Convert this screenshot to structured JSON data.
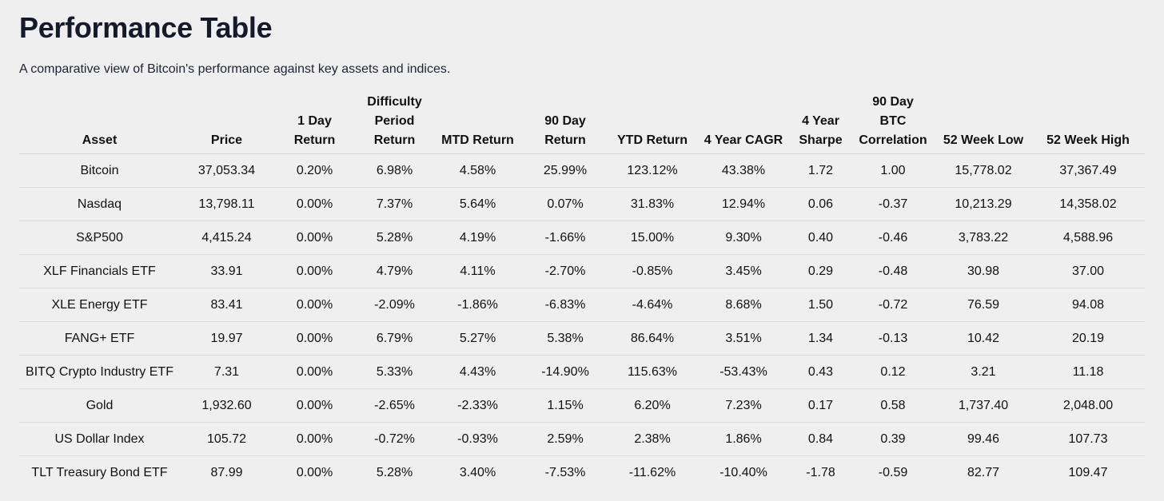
{
  "page": {
    "title": "Performance Table",
    "subtitle": "A comparative view of Bitcoin's performance against key assets and indices."
  },
  "colors": {
    "positive": "#1f7a1f",
    "negative": "#d42323",
    "neutral": "#111111",
    "background": "#efefef",
    "title": "#141a2b"
  },
  "table": {
    "headers": [
      [
        "Asset"
      ],
      [
        "Price"
      ],
      [
        "1 Day",
        "Return"
      ],
      [
        "Difficulty",
        "Period",
        "Return"
      ],
      [
        "MTD Return"
      ],
      [
        "90 Day",
        "Return"
      ],
      [
        "YTD Return"
      ],
      [
        "4 Year CAGR"
      ],
      [
        "4 Year",
        "Sharpe"
      ],
      [
        "90 Day",
        "BTC",
        "Correlation"
      ],
      [
        "52 Week Low"
      ],
      [
        "52 Week High"
      ]
    ],
    "rows": [
      {
        "asset": "Bitcoin",
        "price": "37,053.34",
        "day1": "0.20%",
        "difficulty": "6.98%",
        "mtd": "4.58%",
        "day90": "25.99%",
        "ytd": "123.12%",
        "cagr4y": "43.38%",
        "sharpe4y": "1.72",
        "btc_corr": "1.00",
        "low52": "15,778.02",
        "high52": "37,367.49"
      },
      {
        "asset": "Nasdaq",
        "price": "13,798.11",
        "day1": "0.00%",
        "difficulty": "7.37%",
        "mtd": "5.64%",
        "day90": "0.07%",
        "ytd": "31.83%",
        "cagr4y": "12.94%",
        "sharpe4y": "0.06",
        "btc_corr": "-0.37",
        "low52": "10,213.29",
        "high52": "14,358.02"
      },
      {
        "asset": "S&P500",
        "price": "4,415.24",
        "day1": "0.00%",
        "difficulty": "5.28%",
        "mtd": "4.19%",
        "day90": "-1.66%",
        "ytd": "15.00%",
        "cagr4y": "9.30%",
        "sharpe4y": "0.40",
        "btc_corr": "-0.46",
        "low52": "3,783.22",
        "high52": "4,588.96"
      },
      {
        "asset": "XLF Financials ETF",
        "price": "33.91",
        "day1": "0.00%",
        "difficulty": "4.79%",
        "mtd": "4.11%",
        "day90": "-2.70%",
        "ytd": "-0.85%",
        "cagr4y": "3.45%",
        "sharpe4y": "0.29",
        "btc_corr": "-0.48",
        "low52": "30.98",
        "high52": "37.00"
      },
      {
        "asset": "XLE Energy ETF",
        "price": "83.41",
        "day1": "0.00%",
        "difficulty": "-2.09%",
        "mtd": "-1.86%",
        "day90": "-6.83%",
        "ytd": "-4.64%",
        "cagr4y": "8.68%",
        "sharpe4y": "1.50",
        "btc_corr": "-0.72",
        "low52": "76.59",
        "high52": "94.08"
      },
      {
        "asset": "FANG+ ETF",
        "price": "19.97",
        "day1": "0.00%",
        "difficulty": "6.79%",
        "mtd": "5.27%",
        "day90": "5.38%",
        "ytd": "86.64%",
        "cagr4y": "3.51%",
        "sharpe4y": "1.34",
        "btc_corr": "-0.13",
        "low52": "10.42",
        "high52": "20.19"
      },
      {
        "asset": "BITQ Crypto Industry ETF",
        "price": "7.31",
        "day1": "0.00%",
        "difficulty": "5.33%",
        "mtd": "4.43%",
        "day90": "-14.90%",
        "ytd": "115.63%",
        "cagr4y": "-53.43%",
        "sharpe4y": "0.43",
        "btc_corr": "0.12",
        "low52": "3.21",
        "high52": "11.18"
      },
      {
        "asset": "Gold",
        "price": "1,932.60",
        "day1": "0.00%",
        "difficulty": "-2.65%",
        "mtd": "-2.33%",
        "day90": "1.15%",
        "ytd": "6.20%",
        "cagr4y": "7.23%",
        "sharpe4y": "0.17",
        "btc_corr": "0.58",
        "low52": "1,737.40",
        "high52": "2,048.00"
      },
      {
        "asset": "US Dollar Index",
        "price": "105.72",
        "day1": "0.00%",
        "difficulty": "-0.72%",
        "mtd": "-0.93%",
        "day90": "2.59%",
        "ytd": "2.38%",
        "cagr4y": "1.86%",
        "sharpe4y": "0.84",
        "btc_corr": "0.39",
        "low52": "99.46",
        "high52": "107.73"
      },
      {
        "asset": "TLT Treasury Bond ETF",
        "price": "87.99",
        "day1": "0.00%",
        "difficulty": "5.28%",
        "mtd": "3.40%",
        "day90": "-7.53%",
        "ytd": "-11.62%",
        "cagr4y": "-10.40%",
        "sharpe4y": "-1.78",
        "btc_corr": "-0.59",
        "low52": "82.77",
        "high52": "109.47"
      }
    ]
  }
}
